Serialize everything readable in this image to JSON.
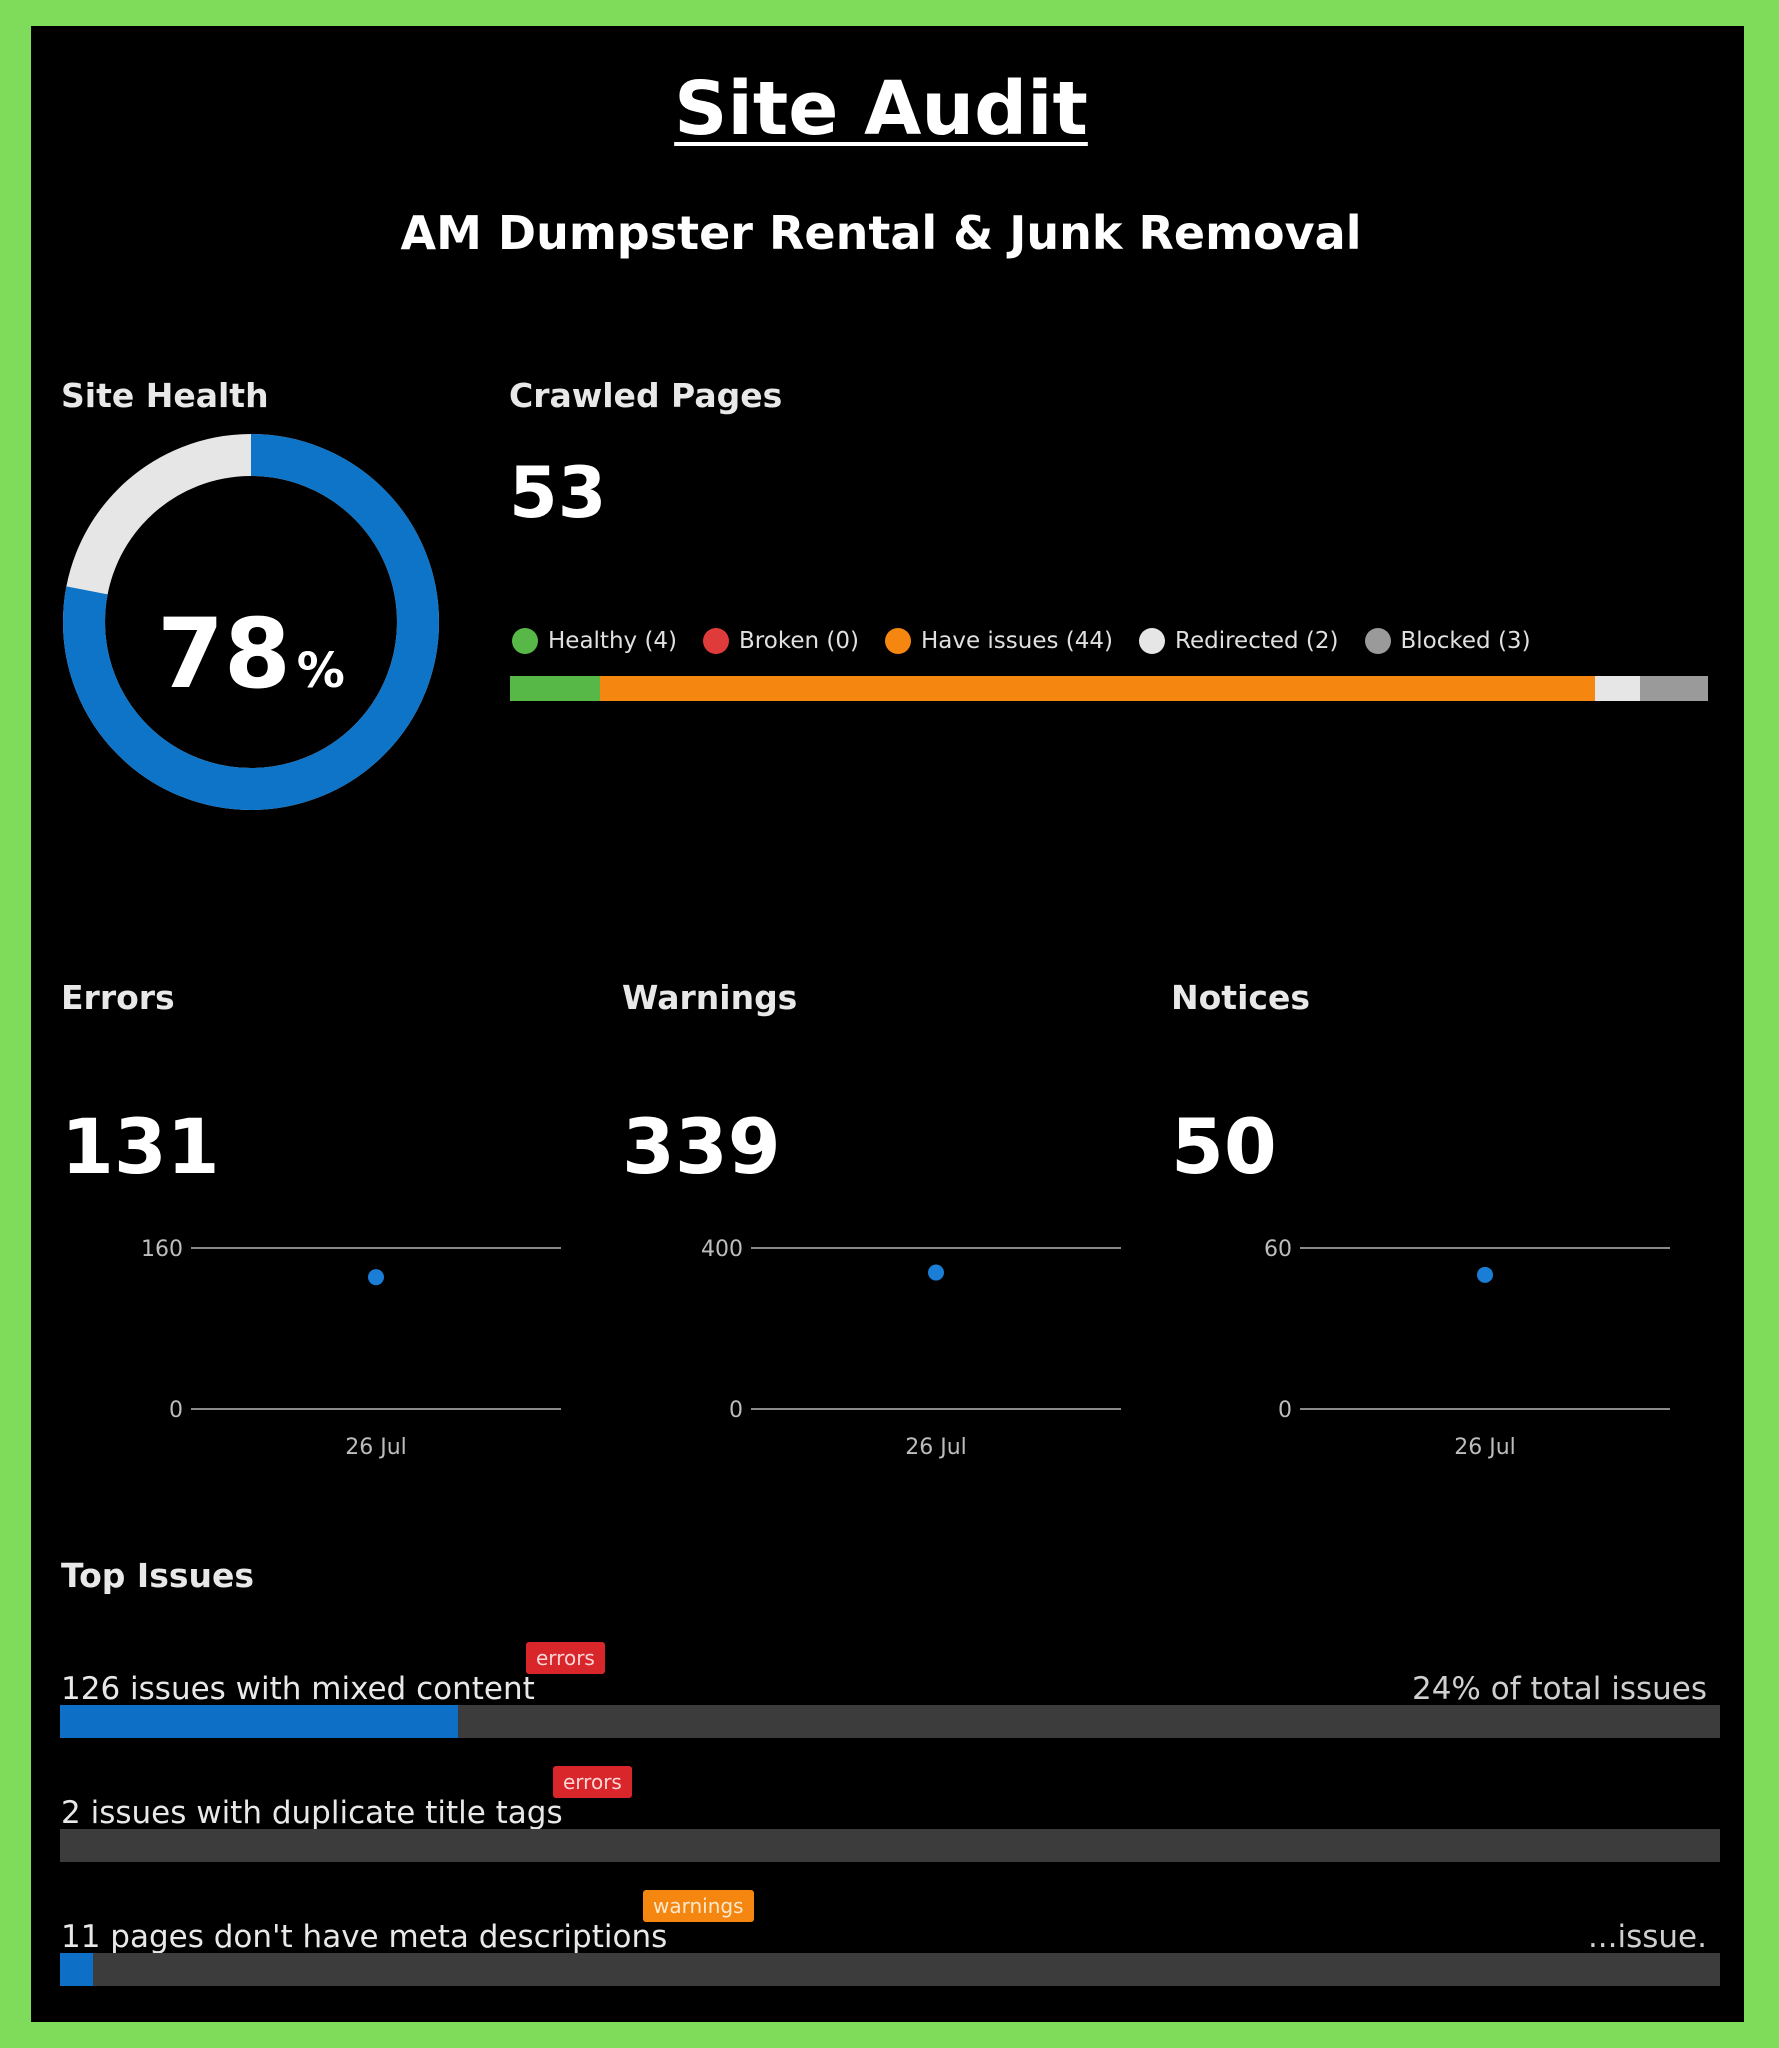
{
  "header": {
    "title": "Site Audit",
    "subtitle": "AM Dumpster Rental & Junk Removal"
  },
  "site_health": {
    "label": "Site Health",
    "value": "78",
    "unit": "%",
    "fraction": 0.78,
    "colors": {
      "filled": "#0e74c8",
      "remaining": "#e6e6e6"
    }
  },
  "crawled_pages": {
    "label": "Crawled Pages",
    "value": "53",
    "legend": [
      {
        "label": "Healthy (4)",
        "count": 4,
        "color": "#58b847"
      },
      {
        "label": "Broken (0)",
        "count": 0,
        "color": "#e03b3b"
      },
      {
        "label": "Have issues (44)",
        "count": 44,
        "color": "#f5860f"
      },
      {
        "label": "Redirected (2)",
        "count": 2,
        "color": "#e6e6e6"
      },
      {
        "label": "Blocked (3)",
        "count": 3,
        "color": "#9a9a9a"
      }
    ]
  },
  "metrics": [
    {
      "label": "Errors",
      "value": "131",
      "y_max": "160",
      "y_min": "0",
      "x_label": "26 Jul",
      "point": 131,
      "max": 160
    },
    {
      "label": "Warnings",
      "value": "339",
      "y_max": "400",
      "y_min": "0",
      "x_label": "26 Jul",
      "point": 339,
      "max": 400
    },
    {
      "label": "Notices",
      "value": "50",
      "y_max": "60",
      "y_min": "0",
      "x_label": "26 Jul",
      "point": 50,
      "max": 60
    }
  ],
  "top_issues": {
    "label": "Top Issues",
    "items": [
      {
        "text": "126 issues with mixed content",
        "badge": "errors",
        "badge_color": "#d8262b",
        "right_text": "24% of total issues",
        "fill": 0.24
      },
      {
        "text": "2 issues with duplicate title tags",
        "badge": "errors",
        "badge_color": "#d8262b",
        "right_text": "",
        "fill": 0.0
      },
      {
        "text": "11 pages don't have meta descriptions",
        "badge": "warnings",
        "badge_color": "#f5860f",
        "right_text": "...issue.",
        "fill": 0.02
      }
    ]
  }
}
